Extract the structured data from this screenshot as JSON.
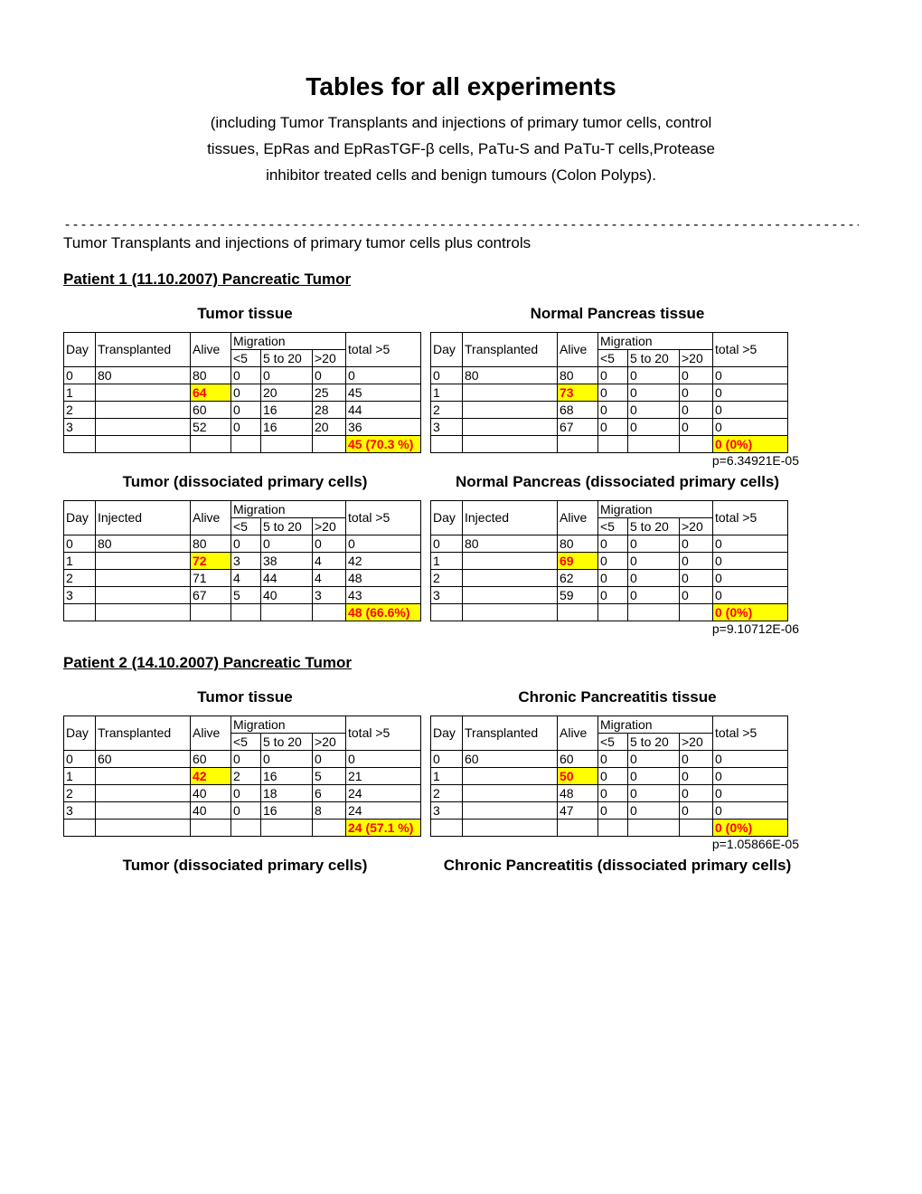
{
  "title": "Tables for all experiments",
  "subtitle_lines": [
    "(including Tumor Transplants and injections of primary tumor cells, control",
    "tissues, EpRas and EpRasTGF-β cells, PaTu-S and PaTu-T cells,Protease",
    "inhibitor  treated cells and benign tumours (Colon Polyps)."
  ],
  "divider": "---------------------------------------------------------------------------------------------------",
  "section_intro": "Tumor Transplants and injections of primary tumor cells plus controls",
  "headers": {
    "day": "Day",
    "transplanted": "Transplanted",
    "injected": "Injected",
    "alive": "Alive",
    "migration": "Migration",
    "lt5": "<5",
    "r5to20": "5 to 20",
    "gt20": ">20",
    "total": "total >5"
  },
  "colors": {
    "highlight": "#ffff00",
    "red": "#ff0000",
    "black": "#000000",
    "white": "#ffffff"
  },
  "patients": [
    {
      "header": "Patient 1 (11.10.2007) Pancreatic Tumor",
      "pairs": [
        {
          "left_label": "Tumor tissue",
          "right_label": "Normal Pancreas tissue",
          "trans_label": "Transplanted",
          "left": {
            "rows": [
              {
                "day": "0",
                "trans": "80",
                "alive": "80",
                "m1": "0",
                "m2": "0",
                "m3": "0",
                "total": "0"
              },
              {
                "day": "1",
                "trans": "",
                "alive": "64",
                "m1": "0",
                "m2": "20",
                "m3": "25",
                "total": "45",
                "alive_hl": true
              },
              {
                "day": "2",
                "trans": "",
                "alive": "60",
                "m1": "0",
                "m2": "16",
                "m3": "28",
                "total": "44"
              },
              {
                "day": "3",
                "trans": "",
                "alive": "52",
                "m1": "0",
                "m2": "16",
                "m3": "20",
                "total": "36"
              }
            ],
            "summary": "45 (70.3 %)"
          },
          "right": {
            "rows": [
              {
                "day": "0",
                "trans": "80",
                "alive": "80",
                "m1": "0",
                "m2": "0",
                "m3": "0",
                "total": "0"
              },
              {
                "day": "1",
                "trans": "",
                "alive": "73",
                "m1": "0",
                "m2": "0",
                "m3": "0",
                "total": "0",
                "alive_hl": true
              },
              {
                "day": "2",
                "trans": "",
                "alive": "68",
                "m1": "0",
                "m2": "0",
                "m3": "0",
                "total": "0"
              },
              {
                "day": "3",
                "trans": "",
                "alive": "67",
                "m1": "0",
                "m2": "0",
                "m3": "0",
                "total": "0"
              }
            ],
            "summary": "0 (0%)"
          },
          "pval": "p=6.34921E-05"
        },
        {
          "left_label": "Tumor (dissociated primary cells)",
          "right_label": "Normal Pancreas (dissociated primary cells)",
          "trans_label": "Injected",
          "left": {
            "rows": [
              {
                "day": "0",
                "trans": "80",
                "alive": "80",
                "m1": "0",
                "m2": "0",
                "m3": "0",
                "total": "0"
              },
              {
                "day": "1",
                "trans": "",
                "alive": "72",
                "m1": "3",
                "m2": "38",
                "m3": "4",
                "total": "42",
                "alive_hl": true
              },
              {
                "day": "2",
                "trans": "",
                "alive": "71",
                "m1": "4",
                "m2": "44",
                "m3": "4",
                "total": "48"
              },
              {
                "day": "3",
                "trans": "",
                "alive": "67",
                "m1": "5",
                "m2": "40",
                "m3": "3",
                "total": "43"
              }
            ],
            "summary": "48 (66.6%)"
          },
          "right": {
            "rows": [
              {
                "day": "0",
                "trans": "80",
                "alive": "80",
                "m1": "0",
                "m2": "0",
                "m3": "0",
                "total": "0"
              },
              {
                "day": "1",
                "trans": "",
                "alive": "69",
                "m1": "0",
                "m2": "0",
                "m3": "0",
                "total": "0",
                "alive_hl": true
              },
              {
                "day": "2",
                "trans": "",
                "alive": "62",
                "m1": "0",
                "m2": "0",
                "m3": "0",
                "total": "0"
              },
              {
                "day": "3",
                "trans": "",
                "alive": "59",
                "m1": "0",
                "m2": "0",
                "m3": "0",
                "total": "0"
              }
            ],
            "summary": "0 (0%)"
          },
          "pval": "p=9.10712E-06"
        }
      ]
    },
    {
      "header": "Patient 2 (14.10.2007) Pancreatic Tumor",
      "pairs": [
        {
          "left_label": "Tumor tissue",
          "right_label": "Chronic Pancreatitis tissue",
          "trans_label": "Transplanted",
          "left": {
            "rows": [
              {
                "day": "0",
                "trans": "60",
                "alive": "60",
                "m1": "0",
                "m2": "0",
                "m3": "0",
                "total": "0"
              },
              {
                "day": "1",
                "trans": "",
                "alive": "42",
                "m1": "2",
                "m2": "16",
                "m3": "5",
                "total": "21",
                "alive_hl": true
              },
              {
                "day": "2",
                "trans": "",
                "alive": "40",
                "m1": "0",
                "m2": "18",
                "m3": "6",
                "total": "24"
              },
              {
                "day": "3",
                "trans": "",
                "alive": "40",
                "m1": "0",
                "m2": "16",
                "m3": "8",
                "total": "24"
              }
            ],
            "summary": "24 (57.1 %)"
          },
          "right": {
            "rows": [
              {
                "day": "0",
                "trans": "60",
                "alive": "60",
                "m1": "0",
                "m2": "0",
                "m3": "0",
                "total": "0"
              },
              {
                "day": "1",
                "trans": "",
                "alive": "50",
                "m1": "0",
                "m2": "0",
                "m3": "0",
                "total": "0",
                "alive_hl": true
              },
              {
                "day": "2",
                "trans": "",
                "alive": "48",
                "m1": "0",
                "m2": "0",
                "m3": "0",
                "total": "0"
              },
              {
                "day": "3",
                "trans": "",
                "alive": "47",
                "m1": "0",
                "m2": "0",
                "m3": "0",
                "total": "0"
              }
            ],
            "summary": "0 (0%)"
          },
          "pval": "p=1.05866E-05"
        },
        {
          "left_label": "Tumor (dissociated primary cells)",
          "right_label": "Chronic Pancreatitis (dissociated primary cells)",
          "trans_label": "Injected",
          "no_table": true
        }
      ]
    }
  ]
}
